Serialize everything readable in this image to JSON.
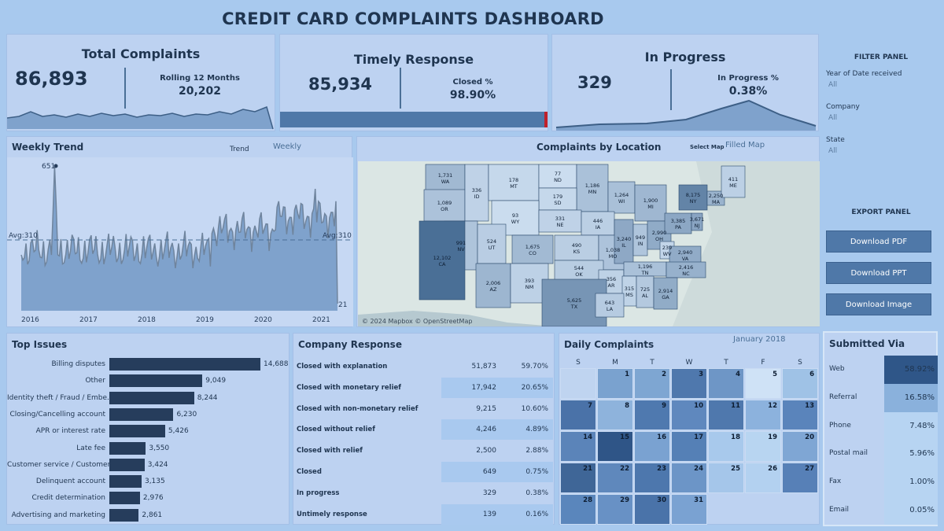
{
  "dashboard_title": "CREDIT CARD COMPLAINTS DASHBOARD",
  "kpis": {
    "total": {
      "title": "Total Complaints",
      "value": "86,893",
      "sub_label": "Rolling 12 Months",
      "sub_value": "20,202"
    },
    "timely": {
      "title": "Timely Response",
      "value": "85,934",
      "sub_label": "Closed %",
      "sub_value": "98.90%",
      "closed_fraction": 0.989
    },
    "progress": {
      "title": "In Progress",
      "value": "329",
      "sub_label": "In Progress %",
      "sub_value": "0.38%"
    }
  },
  "filter_panel": {
    "title": "FILTER PANEL",
    "filters": [
      {
        "label": "Year of Date received",
        "value": "All"
      },
      {
        "label": "Company",
        "value": "All"
      },
      {
        "label": "State",
        "value": "All"
      }
    ]
  },
  "export_panel": {
    "title": "EXPORT PANEL",
    "buttons": [
      "Download PDF",
      "Download PPT",
      "Download Image"
    ]
  },
  "weekly_trend": {
    "title": "Weekly Trend",
    "toggle_label": "Trend",
    "toggle_value": "Weekly",
    "avg_label_left": "Avg:310",
    "avg_label_right": "Avg:310",
    "max_label": "651",
    "last_label": "21"
  },
  "map": {
    "title": "Complaints by Location",
    "select_label": "Select Map",
    "select_value": "Filled Map",
    "attribution": "© 2024 Mapbox © OpenStreetMap",
    "states": [
      {
        "abbr": "WA",
        "value": "1,731"
      },
      {
        "abbr": "OR",
        "value": "1,089"
      },
      {
        "abbr": "ID",
        "value": "336"
      },
      {
        "abbr": "MT",
        "value": "178"
      },
      {
        "abbr": "ND",
        "value": "77"
      },
      {
        "abbr": "MN",
        "value": "1,186"
      },
      {
        "abbr": "SD",
        "value": "179"
      },
      {
        "abbr": "WY",
        "value": "93"
      },
      {
        "abbr": "WI",
        "value": "1,264"
      },
      {
        "abbr": "MI",
        "value": "1,900"
      },
      {
        "abbr": "NY",
        "value": "8,175"
      },
      {
        "abbr": "MA",
        "value": "2,250"
      },
      {
        "abbr": "ME",
        "value": "411"
      },
      {
        "abbr": "NE",
        "value": "331"
      },
      {
        "abbr": "IA",
        "value": "446"
      },
      {
        "abbr": "NV",
        "value": "991"
      },
      {
        "abbr": "UT",
        "value": "524"
      },
      {
        "abbr": "CO",
        "value": "1,675"
      },
      {
        "abbr": "CA",
        "value": "12,102"
      },
      {
        "abbr": "KS",
        "value": "490"
      },
      {
        "abbr": "MO",
        "value": "1,038"
      },
      {
        "abbr": "IL",
        "value": "3,240"
      },
      {
        "abbr": "IN",
        "value": "949"
      },
      {
        "abbr": "OH",
        "value": "2,990"
      },
      {
        "abbr": "PA",
        "value": "3,385"
      },
      {
        "abbr": "NJ",
        "value": "3,671"
      },
      {
        "abbr": "WV",
        "value": "239"
      },
      {
        "abbr": "VA",
        "value": "2,940"
      },
      {
        "abbr": "AZ",
        "value": "2,006"
      },
      {
        "abbr": "NM",
        "value": "393"
      },
      {
        "abbr": "OK",
        "value": "544"
      },
      {
        "abbr": "AR",
        "value": "356"
      },
      {
        "abbr": "TN",
        "value": "1,196"
      },
      {
        "abbr": "NC",
        "value": "2,416"
      },
      {
        "abbr": "TX",
        "value": "5,625"
      },
      {
        "abbr": "MS",
        "value": "315"
      },
      {
        "abbr": "AL",
        "value": "725"
      },
      {
        "abbr": "GA",
        "value": "2,914"
      },
      {
        "abbr": "LA",
        "value": "643"
      }
    ]
  },
  "top_issues": {
    "title": "Top Issues",
    "items": [
      {
        "label": "Billing disputes",
        "value": 14688,
        "display": "14,688"
      },
      {
        "label": "Other",
        "value": 9049,
        "display": "9,049"
      },
      {
        "label": "Identity theft / Fraud / Embe..",
        "value": 8244,
        "display": "8,244"
      },
      {
        "label": "Closing/Cancelling account",
        "value": 6230,
        "display": "6,230"
      },
      {
        "label": "APR or interest rate",
        "value": 5426,
        "display": "5,426"
      },
      {
        "label": "Late fee",
        "value": 3550,
        "display": "3,550"
      },
      {
        "label": "Customer service / Customer..",
        "value": 3424,
        "display": "3,424"
      },
      {
        "label": "Delinquent account",
        "value": 3135,
        "display": "3,135"
      },
      {
        "label": "Credit determination",
        "value": 2976,
        "display": "2,976"
      },
      {
        "label": "Advertising and marketing",
        "value": 2861,
        "display": "2,861"
      }
    ]
  },
  "company_response": {
    "title": "Company Response",
    "rows": [
      {
        "label": "Closed with explanation",
        "count": "51,873",
        "pct": "59.70%"
      },
      {
        "label": "Closed with monetary relief",
        "count": "17,942",
        "pct": "20.65%"
      },
      {
        "label": "Closed with non-monetary relief",
        "count": "9,215",
        "pct": "10.60%"
      },
      {
        "label": "Closed without relief",
        "count": "4,246",
        "pct": "4.89%"
      },
      {
        "label": "Closed with relief",
        "count": "2,500",
        "pct": "2.88%"
      },
      {
        "label": "Closed",
        "count": "649",
        "pct": "0.75%"
      },
      {
        "label": "In progress",
        "count": "329",
        "pct": "0.38%"
      },
      {
        "label": "Untimely response",
        "count": "139",
        "pct": "0.16%"
      }
    ]
  },
  "daily": {
    "title": "Daily Complaints",
    "month": "January 2018",
    "weekdays": [
      "S",
      "M",
      "T",
      "W",
      "T",
      "F",
      "S"
    ],
    "days": [
      "1",
      "2",
      "3",
      "4",
      "5",
      "6",
      "7",
      "8",
      "9",
      "10",
      "11",
      "12",
      "13",
      "14",
      "15",
      "16",
      "17",
      "18",
      "19",
      "20",
      "21",
      "22",
      "23",
      "24",
      "25",
      "26",
      "27",
      "28",
      "29",
      "30",
      "31"
    ]
  },
  "submitted": {
    "title": "Submitted Via",
    "rows": [
      {
        "label": "Web",
        "value": "58.92%"
      },
      {
        "label": "Referral",
        "value": "16.58%"
      },
      {
        "label": "Phone",
        "value": "7.48%"
      },
      {
        "label": "Postal mail",
        "value": "5.96%"
      },
      {
        "label": "Fax",
        "value": "1.00%"
      },
      {
        "label": "Email",
        "value": "0.05%"
      }
    ]
  },
  "colors": {
    "bar_dark": "#263d5c",
    "accent_red": "#c0202a",
    "map_dark": "#4a6f96",
    "map_light": "#d6e6f7"
  }
}
